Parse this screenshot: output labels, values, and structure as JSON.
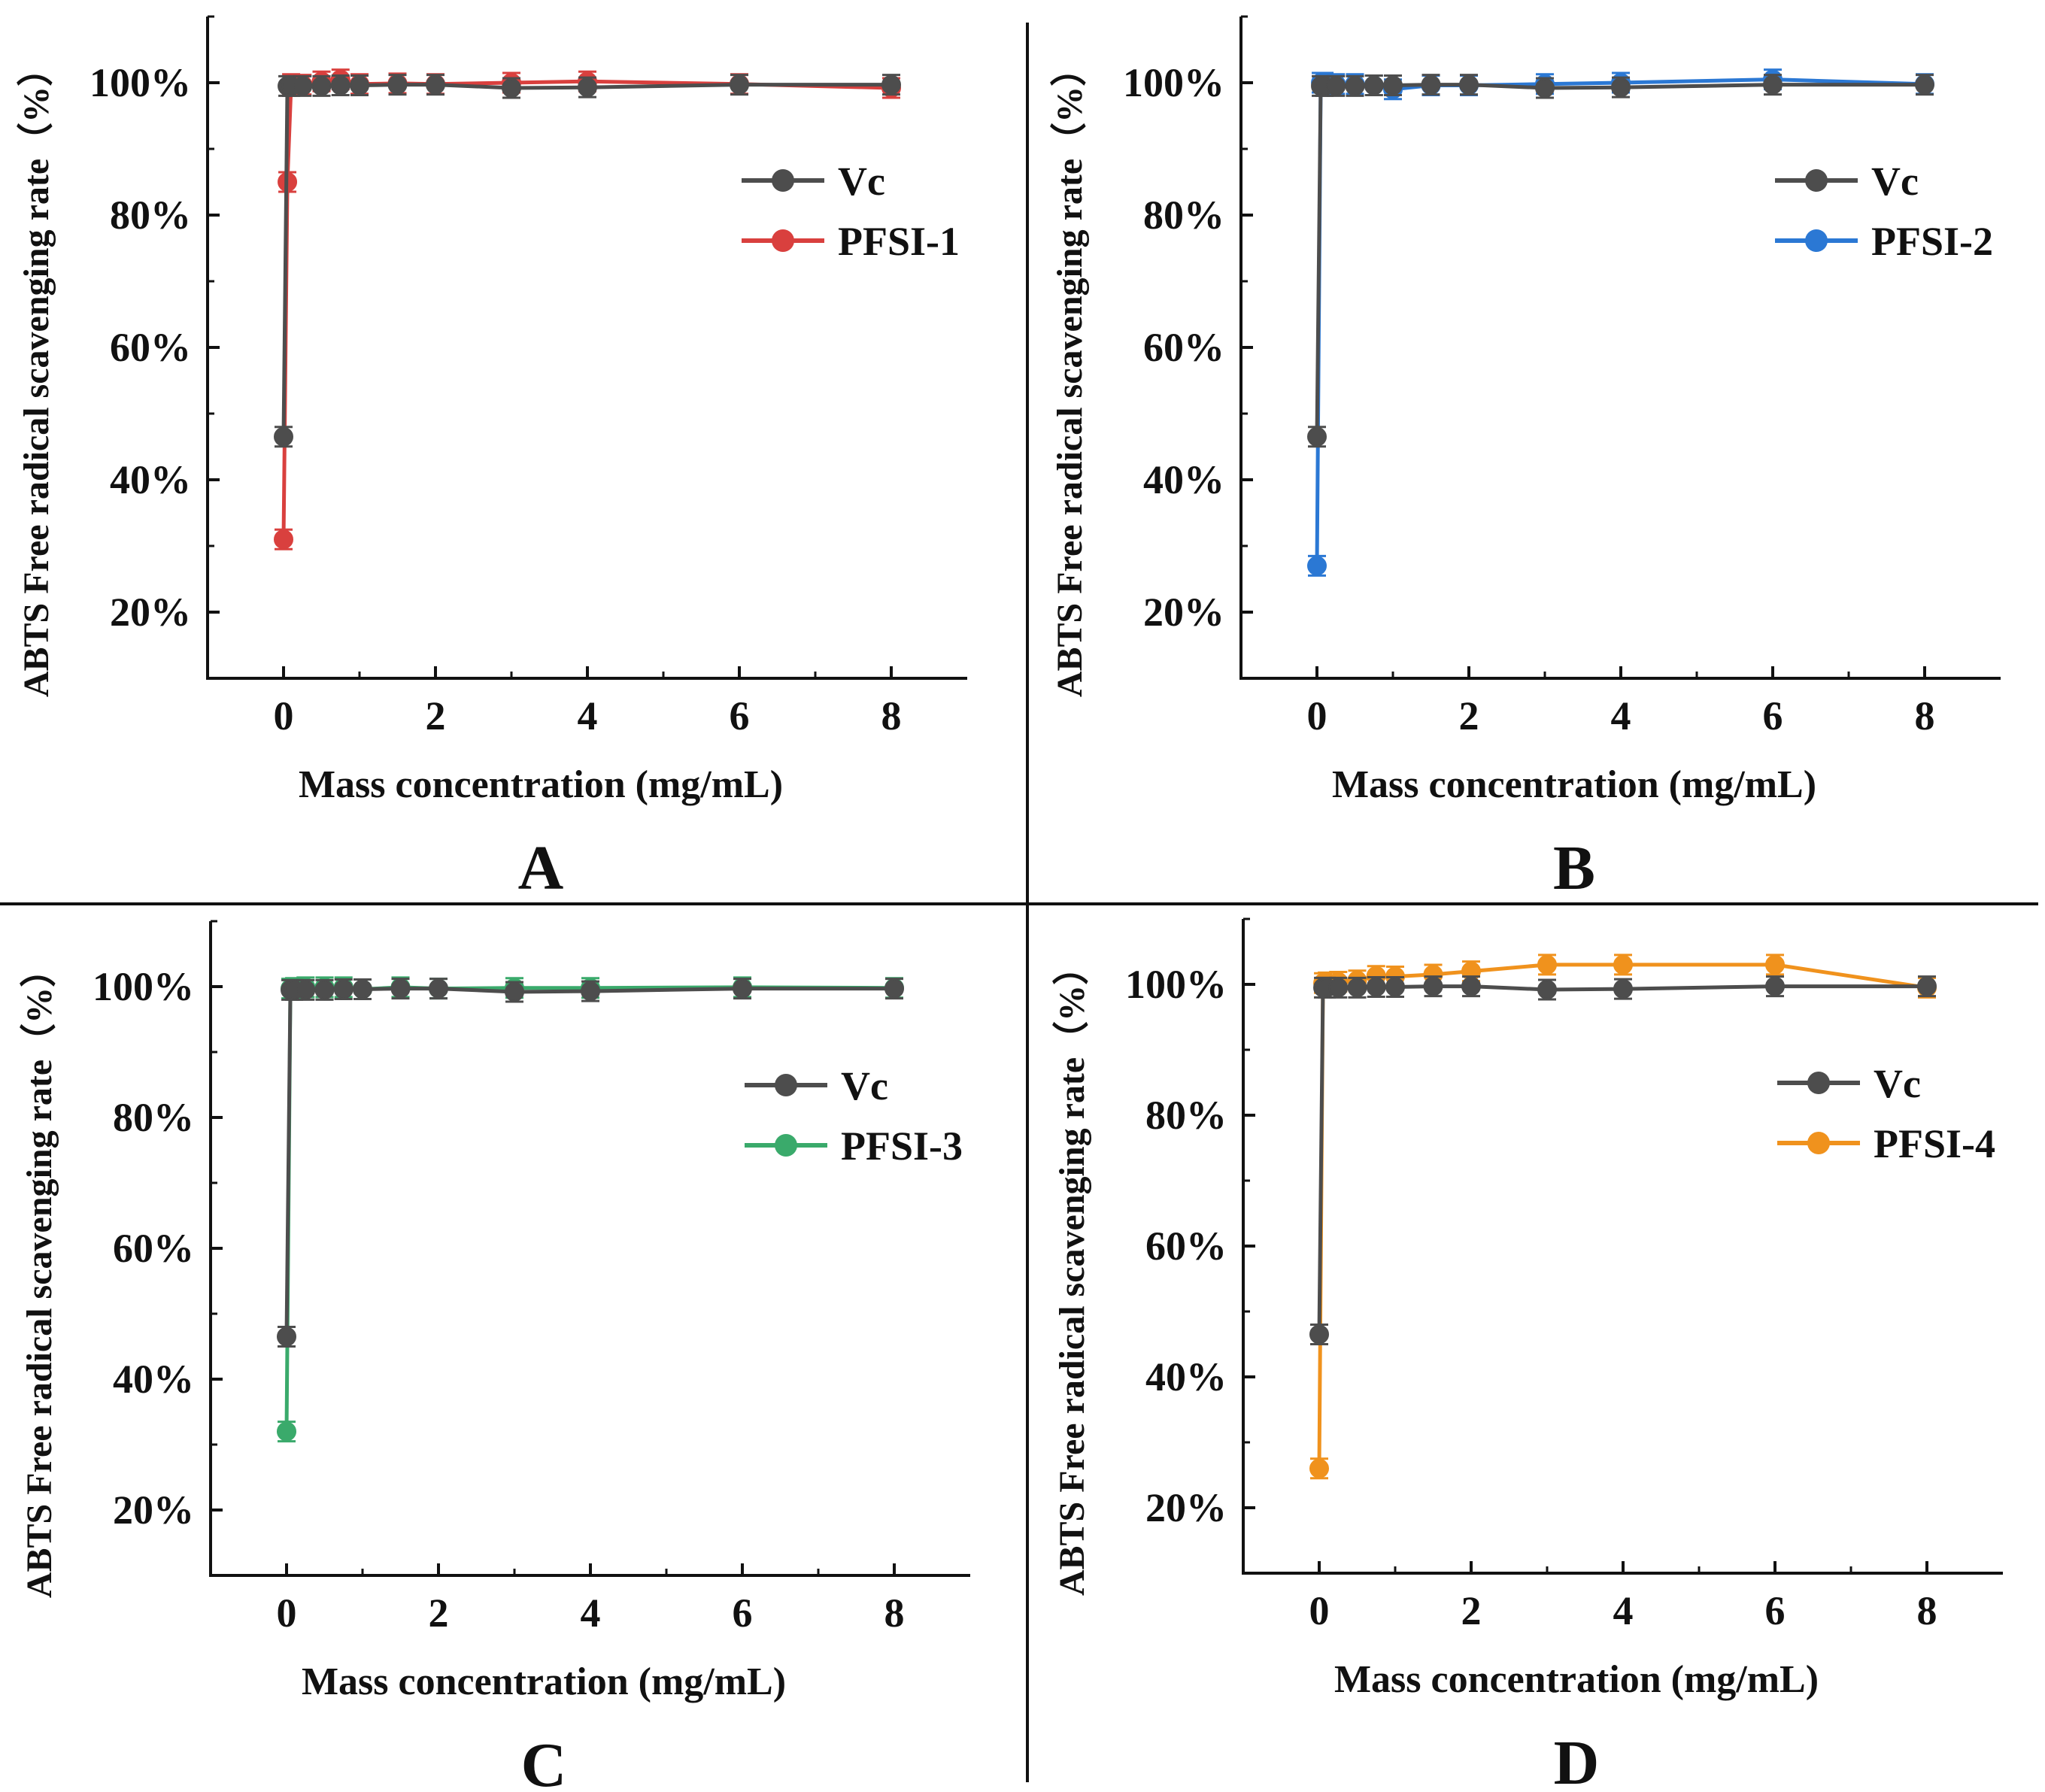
{
  "chart_data": [
    {
      "type": "line",
      "panel_label": "A",
      "xlabel": "Mass concentration (mg/mL)",
      "ylabel": "ABTS Free radical scavenging rate（%）",
      "xlim": [
        -1,
        9
      ],
      "ylim": [
        10,
        110
      ],
      "xticks": [
        0,
        2,
        4,
        6,
        8
      ],
      "yticks": [
        20,
        40,
        60,
        80,
        100
      ],
      "tick_suffix": "%",
      "legend_position": "top-right",
      "series": [
        {
          "name": "Vc",
          "color": "#4d4d4d",
          "x": [
            0,
            0.05,
            0.1,
            0.25,
            0.5,
            0.75,
            1,
            1.5,
            2,
            3,
            4,
            6,
            8
          ],
          "y": [
            46.5,
            99.5,
            99.5,
            99.5,
            99.5,
            99.6,
            99.6,
            99.7,
            99.7,
            99.2,
            99.3,
            99.7,
            99.7
          ]
        },
        {
          "name": "PFSI-1",
          "color": "#d9403e",
          "x": [
            0,
            0.05,
            0.1,
            0.25,
            0.5,
            0.75,
            1,
            1.5,
            2,
            3,
            4,
            6,
            8
          ],
          "y": [
            31,
            85,
            99.8,
            99.7,
            100.2,
            100.5,
            99.8,
            99.9,
            99.8,
            100,
            100.2,
            99.8,
            99.2
          ]
        }
      ]
    },
    {
      "type": "line",
      "panel_label": "B",
      "xlabel": "Mass concentration (mg/mL)",
      "ylabel": "ABTS Free radical scavenging rate（%）",
      "xlim": [
        -1,
        9
      ],
      "ylim": [
        10,
        110
      ],
      "xticks": [
        0,
        2,
        4,
        6,
        8
      ],
      "yticks": [
        20,
        40,
        60,
        80,
        100
      ],
      "tick_suffix": "%",
      "legend_position": "top-right",
      "series": [
        {
          "name": "Vc",
          "color": "#4d4d4d",
          "x": [
            0,
            0.05,
            0.1,
            0.25,
            0.5,
            0.75,
            1,
            1.5,
            2,
            3,
            4,
            6,
            8
          ],
          "y": [
            46.5,
            99.5,
            99.5,
            99.5,
            99.5,
            99.6,
            99.6,
            99.7,
            99.7,
            99.2,
            99.3,
            99.7,
            99.7
          ]
        },
        {
          "name": "PFSI-2",
          "color": "#2b78d4",
          "x": [
            0,
            0.05,
            0.1,
            0.25,
            0.5,
            0.75,
            1,
            1.5,
            2,
            3,
            4,
            6,
            8
          ],
          "y": [
            27,
            100,
            100,
            99.8,
            99.8,
            99.6,
            99,
            99.6,
            99.6,
            99.8,
            100,
            100.5,
            99.8
          ]
        }
      ]
    },
    {
      "type": "line",
      "panel_label": "C",
      "xlabel": "Mass concentration (mg/mL)",
      "ylabel": "ABTS Free radical scavenging rate（%）",
      "xlim": [
        -1,
        9
      ],
      "ylim": [
        10,
        110
      ],
      "xticks": [
        0,
        2,
        4,
        6,
        8
      ],
      "yticks": [
        20,
        40,
        60,
        80,
        100
      ],
      "tick_suffix": "%",
      "legend_position": "top-right",
      "series": [
        {
          "name": "Vc",
          "color": "#4d4d4d",
          "x": [
            0,
            0.05,
            0.1,
            0.25,
            0.5,
            0.75,
            1,
            1.5,
            2,
            3,
            4,
            6,
            8
          ],
          "y": [
            46.5,
            99.5,
            99.5,
            99.5,
            99.5,
            99.6,
            99.6,
            99.7,
            99.7,
            99.2,
            99.3,
            99.7,
            99.7
          ]
        },
        {
          "name": "PFSI-3",
          "color": "#3aaa6b",
          "x": [
            0,
            0.05,
            0.1,
            0.25,
            0.5,
            0.75,
            1,
            1.5,
            2,
            3,
            4,
            6,
            8
          ],
          "y": [
            32,
            99.7,
            99.8,
            99.9,
            99.9,
            99.9,
            99.6,
            99.9,
            99.7,
            99.8,
            99.8,
            99.9,
            99.8
          ]
        }
      ]
    },
    {
      "type": "line",
      "panel_label": "D",
      "xlabel": "Mass concentration (mg/mL)",
      "ylabel": "ABTS Free radical scavenging rate（%）",
      "xlim": [
        -1,
        9
      ],
      "ylim": [
        10,
        110
      ],
      "xticks": [
        0,
        2,
        4,
        6,
        8
      ],
      "yticks": [
        20,
        40,
        60,
        80,
        100
      ],
      "tick_suffix": "%",
      "legend_position": "top-right",
      "series": [
        {
          "name": "Vc",
          "color": "#4d4d4d",
          "x": [
            0,
            0.05,
            0.1,
            0.25,
            0.5,
            0.75,
            1,
            1.5,
            2,
            3,
            4,
            6,
            8
          ],
          "y": [
            46.5,
            99.5,
            99.5,
            99.5,
            99.5,
            99.6,
            99.6,
            99.7,
            99.7,
            99.2,
            99.3,
            99.7,
            99.7
          ]
        },
        {
          "name": "PFSI-4",
          "color": "#f0921d",
          "x": [
            0,
            0.05,
            0.1,
            0.25,
            0.5,
            0.75,
            1,
            1.5,
            2,
            3,
            4,
            6,
            8
          ],
          "y": [
            26,
            100.2,
            100.3,
            100.4,
            100.6,
            101.3,
            101.2,
            101.5,
            102,
            103,
            103,
            103,
            99.5
          ]
        }
      ]
    }
  ]
}
